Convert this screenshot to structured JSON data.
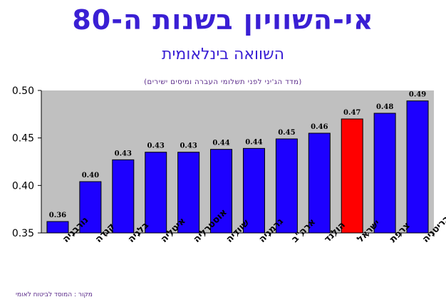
{
  "title": "אי-השוויון בשנות ה-80",
  "subtitle": "השוואה בינלאומית",
  "note": "(מדד הג'יני לפני תשלומי העברה ומיסים ישירים)",
  "source": "מקור : המוסד לביטוח לאומי",
  "colors": {
    "bar": "#1d00ff",
    "highlight": "#ff0000",
    "plot_bg": "#c0c0c0",
    "title": "#3a1fd4"
  },
  "chart_data": {
    "type": "bar",
    "categories": [
      "נורבגיה",
      "קנדה",
      "בלגיה",
      "איטליה",
      "אוסטרליה",
      "שוודיה",
      "גרמניה",
      "ארה\"ב",
      "הולנד",
      "ישראל",
      "צרפת",
      "בריטניה"
    ],
    "values": [
      0.36,
      0.4,
      0.43,
      0.43,
      0.43,
      0.44,
      0.44,
      0.45,
      0.46,
      0.47,
      0.48,
      0.49
    ],
    "plotted_values": [
      0.362,
      0.404,
      0.427,
      0.435,
      0.435,
      0.438,
      0.439,
      0.449,
      0.455,
      0.47,
      0.476,
      0.489
    ],
    "data_labels": [
      "0.36",
      "0.40",
      "0.43",
      "0.43",
      "0.43",
      "0.44",
      "0.44",
      "0.45",
      "0.46",
      "0.47",
      "0.48",
      "0.49"
    ],
    "highlight_index": 9,
    "ylim": [
      0.35,
      0.5
    ],
    "yticks": [
      "0.35",
      "0.40",
      "0.45",
      "0.50"
    ],
    "title": "אי-השוויון בשנות ה-80",
    "xlabel": "",
    "ylabel": "",
    "grid": false,
    "legend": "none"
  }
}
